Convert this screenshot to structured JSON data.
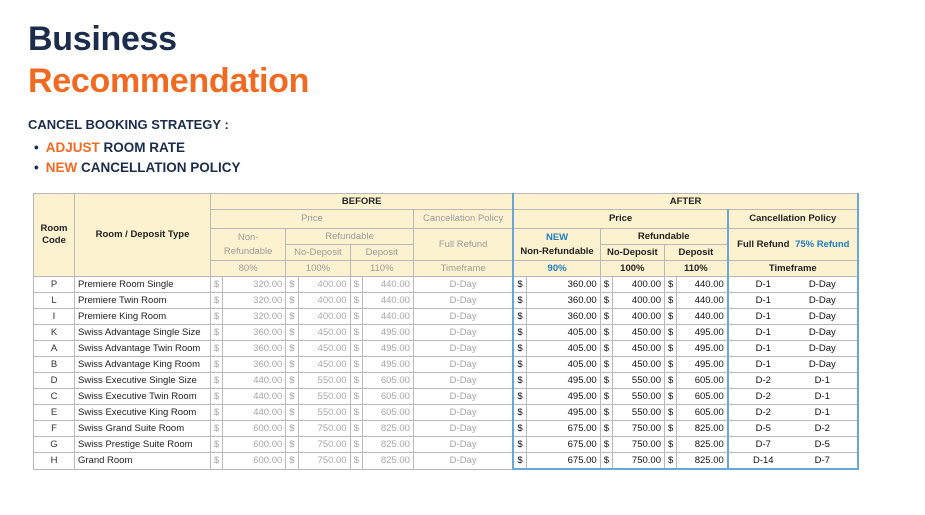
{
  "heading": {
    "line1": "Business",
    "line2": "Recommendation"
  },
  "strategy": {
    "label": "CANCEL BOOKING STRATEGY :",
    "bullets": [
      {
        "emph": "ADJUST",
        "rest": " ROOM RATE"
      },
      {
        "emph": "NEW",
        "rest": " CANCELLATION POLICY"
      }
    ]
  },
  "table": {
    "room_code": "Room Code",
    "room_type": "Room / Deposit Type",
    "before": "BEFORE",
    "after": "AFTER",
    "price": "Price",
    "cancel_policy": "Cancellation Policy",
    "non_refundable": "Non-Refundable",
    "refundable": "Refundable",
    "full_refund": "Full Refund",
    "no_deposit": "No-Deposit",
    "deposit": "Deposit",
    "pct_80": "80%",
    "pct_100": "100%",
    "pct_110": "110%",
    "timeframe": "Timeframe",
    "new_label": "NEW",
    "new_non_refundable": "Non-Refundable",
    "pct_90": "90%",
    "refund_75": "75% Refund",
    "currency": "$",
    "rows": [
      {
        "code": "P",
        "name": "Premiere Room Single",
        "b_nr": "320.00",
        "b_nd": "400.00",
        "b_d": "440.00",
        "b_tf": "D-Day",
        "a_nr": "360.00",
        "a_nd": "400.00",
        "a_d": "440.00",
        "a_full": "D-1",
        "a_75": "D-Day"
      },
      {
        "code": "L",
        "name": "Premiere Twin Room",
        "b_nr": "320.00",
        "b_nd": "400.00",
        "b_d": "440.00",
        "b_tf": "D-Day",
        "a_nr": "360.00",
        "a_nd": "400.00",
        "a_d": "440.00",
        "a_full": "D-1",
        "a_75": "D-Day"
      },
      {
        "code": "I",
        "name": "Premiere King Room",
        "b_nr": "320.00",
        "b_nd": "400.00",
        "b_d": "440.00",
        "b_tf": "D-Day",
        "a_nr": "360.00",
        "a_nd": "400.00",
        "a_d": "440.00",
        "a_full": "D-1",
        "a_75": "D-Day"
      },
      {
        "code": "K",
        "name": "Swiss Advantage Single Size",
        "b_nr": "360.00",
        "b_nd": "450.00",
        "b_d": "495.00",
        "b_tf": "D-Day",
        "a_nr": "405.00",
        "a_nd": "450.00",
        "a_d": "495.00",
        "a_full": "D-1",
        "a_75": "D-Day"
      },
      {
        "code": "A",
        "name": "Swiss Advantage Twin Room",
        "b_nr": "360.00",
        "b_nd": "450.00",
        "b_d": "495.00",
        "b_tf": "D-Day",
        "a_nr": "405.00",
        "a_nd": "450.00",
        "a_d": "495.00",
        "a_full": "D-1",
        "a_75": "D-Day"
      },
      {
        "code": "B",
        "name": "Swiss Advantage King Room",
        "b_nr": "360.00",
        "b_nd": "450.00",
        "b_d": "495.00",
        "b_tf": "D-Day",
        "a_nr": "405.00",
        "a_nd": "450.00",
        "a_d": "495.00",
        "a_full": "D-1",
        "a_75": "D-Day"
      },
      {
        "code": "D",
        "name": "Swiss Executive Single Size",
        "b_nr": "440.00",
        "b_nd": "550.00",
        "b_d": "605.00",
        "b_tf": "D-Day",
        "a_nr": "495.00",
        "a_nd": "550.00",
        "a_d": "605.00",
        "a_full": "D-2",
        "a_75": "D-1"
      },
      {
        "code": "C",
        "name": "Swiss Executive Twin Room",
        "b_nr": "440.00",
        "b_nd": "550.00",
        "b_d": "605.00",
        "b_tf": "D-Day",
        "a_nr": "495.00",
        "a_nd": "550.00",
        "a_d": "605.00",
        "a_full": "D-2",
        "a_75": "D-1"
      },
      {
        "code": "E",
        "name": "Swiss Executive King Room",
        "b_nr": "440.00",
        "b_nd": "550.00",
        "b_d": "605.00",
        "b_tf": "D-Day",
        "a_nr": "495.00",
        "a_nd": "550.00",
        "a_d": "605.00",
        "a_full": "D-2",
        "a_75": "D-1"
      },
      {
        "code": "F",
        "name": "Swiss Grand Suite Room",
        "b_nr": "600.00",
        "b_nd": "750.00",
        "b_d": "825.00",
        "b_tf": "D-Day",
        "a_nr": "675.00",
        "a_nd": "750.00",
        "a_d": "825.00",
        "a_full": "D-5",
        "a_75": "D-2"
      },
      {
        "code": "G",
        "name": "Swiss Prestige Suite Room",
        "b_nr": "600.00",
        "b_nd": "750.00",
        "b_d": "825.00",
        "b_tf": "D-Day",
        "a_nr": "675.00",
        "a_nd": "750.00",
        "a_d": "825.00",
        "a_full": "D-7",
        "a_75": "D-5"
      },
      {
        "code": "H",
        "name": "Grand Room",
        "b_nr": "600.00",
        "b_nd": "750.00",
        "b_d": "825.00",
        "b_tf": "D-Day",
        "a_nr": "675.00",
        "a_nd": "750.00",
        "a_d": "825.00",
        "a_full": "D-14",
        "a_75": "D-7"
      }
    ]
  }
}
